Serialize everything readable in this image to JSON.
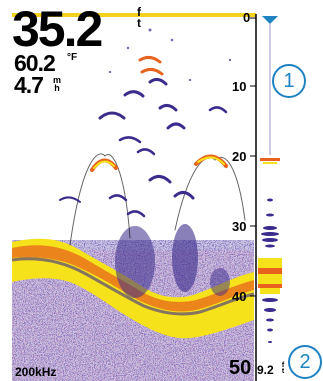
{
  "readouts": {
    "depth": {
      "value": "35.2",
      "unit": "ft"
    },
    "water_temp": {
      "value": "60.2",
      "unit": "°F"
    },
    "speed": {
      "value": "4.7",
      "unit": "mh"
    }
  },
  "scale_ticks": [
    "0",
    "10",
    "20",
    "30",
    "40"
  ],
  "frequency": "200kHz",
  "range": "50",
  "strip_reading": {
    "value": "9.2",
    "unit": "ft"
  },
  "callouts": [
    "1",
    "2"
  ],
  "colors": {
    "background": "#ffffff",
    "bottom_strong": "#f6e21a",
    "bottom_mid": "#e8641e",
    "return_weak": "#3a2c8c",
    "callout": "#1f82c2",
    "top_bar": "#f2d21c"
  }
}
